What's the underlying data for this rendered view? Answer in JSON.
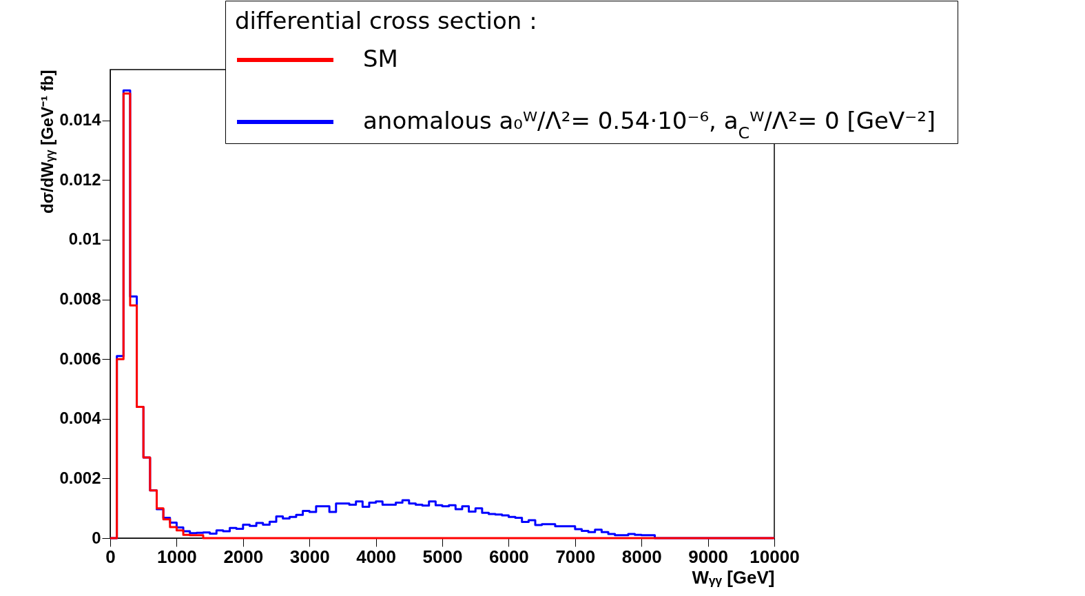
{
  "chart_data": {
    "type": "histogram",
    "xlabel": "Wᵧᵧ [GeV]",
    "ylabel": "dσ/dWᵧᵧ [GeV⁻¹ fb]",
    "legend_title": "differential cross section :",
    "bins": [
      0,
      100,
      200,
      300,
      400,
      500,
      600,
      700,
      800,
      900,
      1000,
      1100,
      1200,
      1300,
      1400,
      1500,
      1600,
      1700,
      1800,
      1900,
      2000,
      2100,
      2200,
      2300,
      2400,
      2500,
      2600,
      2700,
      2800,
      2900,
      3000,
      3100,
      3200,
      3300,
      3400,
      3500,
      3600,
      3700,
      3800,
      3900,
      4000,
      4100,
      4200,
      4300,
      4400,
      4500,
      4600,
      4700,
      4800,
      4900,
      5000,
      5100,
      5200,
      5300,
      5400,
      5500,
      5600,
      5700,
      5800,
      5900,
      6000,
      6100,
      6200,
      6300,
      6400,
      6500,
      6600,
      6700,
      6800,
      6900,
      7000,
      7100,
      7200,
      7300,
      7400,
      7500,
      7600,
      7700,
      7800,
      7900,
      8000,
      8100,
      8200,
      8300,
      8400,
      8500,
      8600,
      8700,
      8800,
      8900,
      9000,
      9100,
      9200,
      9300,
      9400,
      9500,
      9600,
      9700,
      9800,
      9900,
      10000
    ],
    "series": [
      {
        "name": "SM",
        "color": "#ff0000",
        "values": [
          0,
          0.006,
          0.0149,
          0.0078,
          0.0044,
          0.0027,
          0.0016,
          0.001,
          0.00063,
          0.00037,
          0.00026,
          0.00011,
          0.0001,
          0.0001,
          0,
          0,
          0,
          0,
          0,
          0,
          0,
          0,
          0,
          0,
          0,
          0,
          0,
          0,
          0,
          0,
          0,
          0,
          0,
          0,
          0,
          0,
          0,
          0,
          0,
          0,
          0,
          0,
          0,
          0,
          0,
          0,
          0,
          0,
          0,
          0,
          0,
          0,
          0,
          0,
          0,
          0,
          0,
          0,
          0,
          0,
          0,
          0,
          0,
          0,
          0,
          0,
          0,
          0,
          0,
          0,
          0,
          0,
          0,
          0,
          0,
          0,
          0,
          0,
          0,
          0,
          0,
          0,
          0,
          0,
          0,
          0,
          0,
          0,
          0,
          0,
          0,
          0,
          0,
          0,
          0,
          0,
          0,
          0,
          0,
          0
        ]
      },
      {
        "name": "anomalous a₀ᵂ/Λ²=  0.54·10⁻⁶, a$_{C}$ᵂ/Λ²= 0 [GeV⁻²]",
        "color": "#0000ff",
        "values": [
          0,
          0.0061,
          0.015,
          0.0081,
          0.0044,
          0.0027,
          0.0016,
          0.00097,
          0.00068,
          0.00052,
          0.00036,
          0.00023,
          0.00017,
          0.00018,
          0.00019,
          0.00015,
          0.00026,
          0.00023,
          0.00034,
          0.00031,
          0.00045,
          0.00041,
          0.00051,
          0.00045,
          0.00055,
          0.00073,
          0.00066,
          0.00071,
          0.00078,
          0.00091,
          0.00088,
          0.00107,
          0.00107,
          0.00088,
          0.00116,
          0.00116,
          0.00112,
          0.00123,
          0.00105,
          0.00119,
          0.00123,
          0.00112,
          0.00112,
          0.00119,
          0.00127,
          0.00116,
          0.00112,
          0.00109,
          0.00123,
          0.0011,
          0.00107,
          0.0011,
          0.00097,
          0.00107,
          0.00089,
          0.001,
          0.00085,
          0.00081,
          0.00079,
          0.00076,
          0.00071,
          0.00068,
          0.00054,
          0.0006,
          0.00044,
          0.00047,
          0.00047,
          0.0004,
          0.0004,
          0.0004,
          0.0003,
          0.00024,
          0.0002,
          0.00028,
          0.0002,
          0.00014,
          0.0001,
          0.0001,
          0.00014,
          0.00011,
          0.0001,
          0.0001,
          0,
          0,
          0,
          0,
          0,
          0,
          0,
          0,
          0,
          0,
          0,
          0,
          0,
          0,
          0,
          0,
          0,
          0
        ]
      }
    ],
    "xlim": [
      0,
      10000
    ],
    "xticks": [
      0,
      1000,
      2000,
      3000,
      4000,
      5000,
      6000,
      7000,
      8000,
      9000,
      10000
    ],
    "ylim": [
      0,
      0.0157
    ],
    "yticks": [
      0,
      0.002,
      0.004,
      0.006,
      0.008,
      0.01,
      0.012,
      0.014
    ],
    "grid": false,
    "legend": "top",
    "marker": "none",
    "line_style": "solid"
  }
}
